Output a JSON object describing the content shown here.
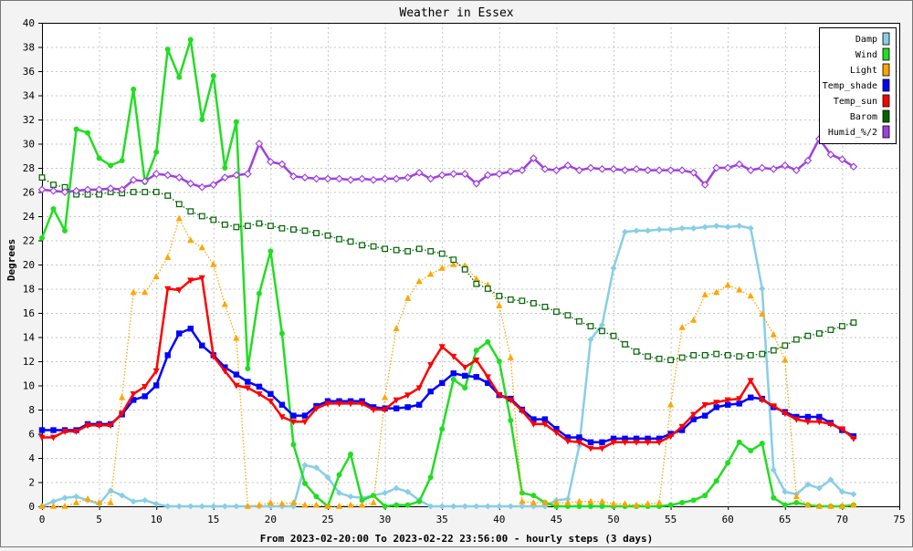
{
  "chart_data": {
    "type": "line",
    "title": "Weather in Essex",
    "xlabel": "From 2023-02-20:00 To 2023-02-22 23:56:00 - hourly steps (3 days)",
    "ylabel": "Degrees",
    "xlim": [
      0,
      75
    ],
    "ylim": [
      0,
      40
    ],
    "x_ticks": [
      0,
      5,
      10,
      15,
      20,
      25,
      30,
      35,
      40,
      45,
      50,
      55,
      60,
      65,
      70,
      75
    ],
    "y_ticks": [
      0,
      2,
      4,
      6,
      8,
      10,
      12,
      14,
      16,
      18,
      20,
      22,
      24,
      26,
      28,
      30,
      32,
      34,
      36,
      38,
      40
    ],
    "grid": true,
    "legend_position": "top-right",
    "x": [
      0,
      1,
      2,
      3,
      4,
      5,
      6,
      7,
      8,
      9,
      10,
      11,
      12,
      13,
      14,
      15,
      16,
      17,
      18,
      19,
      20,
      21,
      22,
      23,
      24,
      25,
      26,
      27,
      28,
      29,
      30,
      31,
      32,
      33,
      34,
      35,
      36,
      37,
      38,
      39,
      40,
      41,
      42,
      43,
      44,
      45,
      46,
      47,
      48,
      49,
      50,
      51,
      52,
      53,
      54,
      55,
      56,
      57,
      58,
      59,
      60,
      61,
      62,
      63,
      64,
      65,
      66,
      67,
      68,
      69,
      70,
      71
    ],
    "series": [
      {
        "name": "Damp",
        "color": "#87cee6",
        "line_style": "solid",
        "marker": "diamond",
        "values": [
          0,
          0.4,
          0.7,
          0.8,
          0.5,
          0.2,
          1.3,
          0.9,
          0.4,
          0.5,
          0.2,
          0,
          0,
          0,
          0,
          0,
          0,
          0,
          0,
          0,
          0,
          0,
          0,
          3.4,
          3.2,
          2.4,
          1.1,
          0.8,
          0.7,
          0.9,
          1.1,
          1.5,
          1.2,
          0.5,
          0,
          0,
          0,
          0,
          0,
          0,
          0,
          0,
          0,
          0,
          0,
          0.5,
          0.6,
          5,
          13.8,
          15,
          19.7,
          22.7,
          22.8,
          22.8,
          22.9,
          22.9,
          23,
          23,
          23.1,
          23.2,
          23.1,
          23.2,
          23,
          18,
          3,
          1.2,
          1,
          1.8,
          1.5,
          2.2,
          1.2,
          1
        ]
      },
      {
        "name": "Wind",
        "color": "#22dd22",
        "line_style": "solid",
        "marker": "dot",
        "values": [
          22.2,
          24.6,
          22.8,
          31.2,
          30.9,
          28.8,
          28.2,
          28.6,
          34.5,
          26.8,
          29.3,
          37.8,
          35.5,
          38.6,
          32,
          35.6,
          28,
          31.8,
          11.4,
          17.6,
          21.1,
          14.3,
          5.1,
          1.9,
          0.8,
          0,
          2.6,
          4.3,
          0.5,
          0.9,
          0,
          0.1,
          0.1,
          0.4,
          2.4,
          6.4,
          10.5,
          9.8,
          12.9,
          13.6,
          12,
          7.1,
          1.1,
          0.9,
          0.3,
          0,
          0,
          0,
          0,
          0,
          0,
          0,
          0,
          0,
          0,
          0.1,
          0.3,
          0.5,
          0.9,
          2.1,
          3.6,
          5.3,
          4.6,
          5.2,
          0.7,
          0.1,
          0.3,
          0.1,
          0,
          0,
          0,
          0.1
        ]
      },
      {
        "name": "Light",
        "color": "#ffa500",
        "line_style": "dotted",
        "marker": "triangle-up",
        "values": [
          0,
          0,
          0,
          0.3,
          0.6,
          0.3,
          0.3,
          9,
          17.7,
          17.7,
          19,
          20.6,
          23.8,
          22,
          21.4,
          20,
          16.7,
          13.9,
          0,
          0.1,
          0.3,
          0.2,
          0.3,
          0.1,
          0.1,
          0,
          0,
          0.1,
          0.1,
          0.3,
          9,
          14.7,
          17.2,
          18.6,
          19.2,
          19.7,
          20,
          19.9,
          18.8,
          18.3,
          16.6,
          12.3,
          0.4,
          0.3,
          0.3,
          0.3,
          0.3,
          0.4,
          0.4,
          0.4,
          0.2,
          0.2,
          0.1,
          0.2,
          0.3,
          8.4,
          14.8,
          15.4,
          17.5,
          17.7,
          18.3,
          17.9,
          17.4,
          15.9,
          14.2,
          12.1,
          0.8,
          0.1,
          0,
          0,
          0,
          0.1
        ]
      },
      {
        "name": "Temp_shade",
        "color": "#0000ff",
        "line_style": "solid",
        "marker": "square",
        "values": [
          6.3,
          6.3,
          6.3,
          6.3,
          6.8,
          6.8,
          6.8,
          7.6,
          8.8,
          9.1,
          10,
          12.5,
          14.3,
          14.7,
          13.3,
          12.5,
          11.5,
          10.9,
          10.3,
          9.9,
          9.3,
          8.4,
          7.5,
          7.5,
          8.3,
          8.7,
          8.7,
          8.7,
          8.7,
          8.2,
          8.1,
          8.1,
          8.2,
          8.4,
          9.5,
          10.2,
          11,
          10.8,
          10.7,
          10.2,
          9.2,
          8.9,
          8,
          7.2,
          7.2,
          6.4,
          5.7,
          5.7,
          5.3,
          5.3,
          5.6,
          5.6,
          5.6,
          5.6,
          5.6,
          6,
          6.3,
          7.2,
          7.5,
          8.2,
          8.4,
          8.5,
          9,
          8.9,
          8.2,
          7.8,
          7.4,
          7.4,
          7.4,
          6.9,
          6.3,
          5.8
        ]
      },
      {
        "name": "Temp_sun",
        "color": "#ff0000",
        "line_style": "solid",
        "marker": "triangle-down",
        "values": [
          5.7,
          5.7,
          6.2,
          6.2,
          6.7,
          6.7,
          6.7,
          7.7,
          9.3,
          9.9,
          11.2,
          18,
          17.9,
          18.7,
          18.9,
          12.4,
          11.2,
          10,
          9.8,
          9.3,
          8.7,
          7.4,
          7,
          7,
          8.1,
          8.5,
          8.5,
          8.5,
          8.5,
          8,
          8,
          8.8,
          9.2,
          9.8,
          11.7,
          13.2,
          12.4,
          11.5,
          12.1,
          10.7,
          9.2,
          8.8,
          7.9,
          6.8,
          6.8,
          6.1,
          5.4,
          5.3,
          4.8,
          4.8,
          5.3,
          5.3,
          5.3,
          5.3,
          5.3,
          5.8,
          6.6,
          7.6,
          8.4,
          8.6,
          8.8,
          8.9,
          10.4,
          8.8,
          8.3,
          7.7,
          7.2,
          7,
          7,
          6.8,
          6.4,
          5.6
        ]
      },
      {
        "name": "Barom",
        "color": "#006400",
        "line_style": "dotted",
        "marker": "hollow-square",
        "values": [
          27.2,
          26.6,
          26.4,
          25.8,
          25.8,
          25.8,
          26,
          25.9,
          26,
          26,
          26,
          25.7,
          25,
          24.4,
          24,
          23.7,
          23.3,
          23.1,
          23.2,
          23.4,
          23.2,
          23,
          22.9,
          22.8,
          22.6,
          22.4,
          22.1,
          21.9,
          21.6,
          21.5,
          21.3,
          21.2,
          21.1,
          21.3,
          21.1,
          20.9,
          20.4,
          19.6,
          18.4,
          18,
          17.4,
          17.1,
          17,
          16.8,
          16.5,
          16.1,
          15.8,
          15.3,
          14.9,
          14.5,
          14.1,
          13.4,
          12.8,
          12.4,
          12.2,
          12.1,
          12.3,
          12.5,
          12.5,
          12.6,
          12.5,
          12.4,
          12.5,
          12.6,
          12.9,
          13.3,
          13.8,
          14.1,
          14.3,
          14.6,
          14.9,
          15.2
        ]
      },
      {
        "name": "Humid_%/2",
        "color": "#a040e0",
        "line_style": "solid",
        "marker": "hollow-diamond",
        "values": [
          26.2,
          26.1,
          26,
          26.1,
          26.2,
          26.2,
          26.3,
          26.2,
          27,
          26.9,
          27.5,
          27.4,
          27.2,
          26.7,
          26.4,
          26.6,
          27.2,
          27.4,
          27.5,
          30,
          28.5,
          28.3,
          27.3,
          27.2,
          27.1,
          27.1,
          27.1,
          27,
          27.1,
          27,
          27.1,
          27.1,
          27.2,
          27.6,
          27.1,
          27.4,
          27.5,
          27.5,
          26.7,
          27.4,
          27.5,
          27.7,
          27.8,
          28.8,
          27.9,
          27.8,
          28.2,
          27.8,
          28,
          27.9,
          27.9,
          27.8,
          27.9,
          27.8,
          27.8,
          27.8,
          27.8,
          27.6,
          26.6,
          28,
          28,
          28.3,
          27.8,
          28,
          27.9,
          28.2,
          27.8,
          28.6,
          30.4,
          29.1,
          28.7,
          28.1
        ]
      }
    ]
  }
}
